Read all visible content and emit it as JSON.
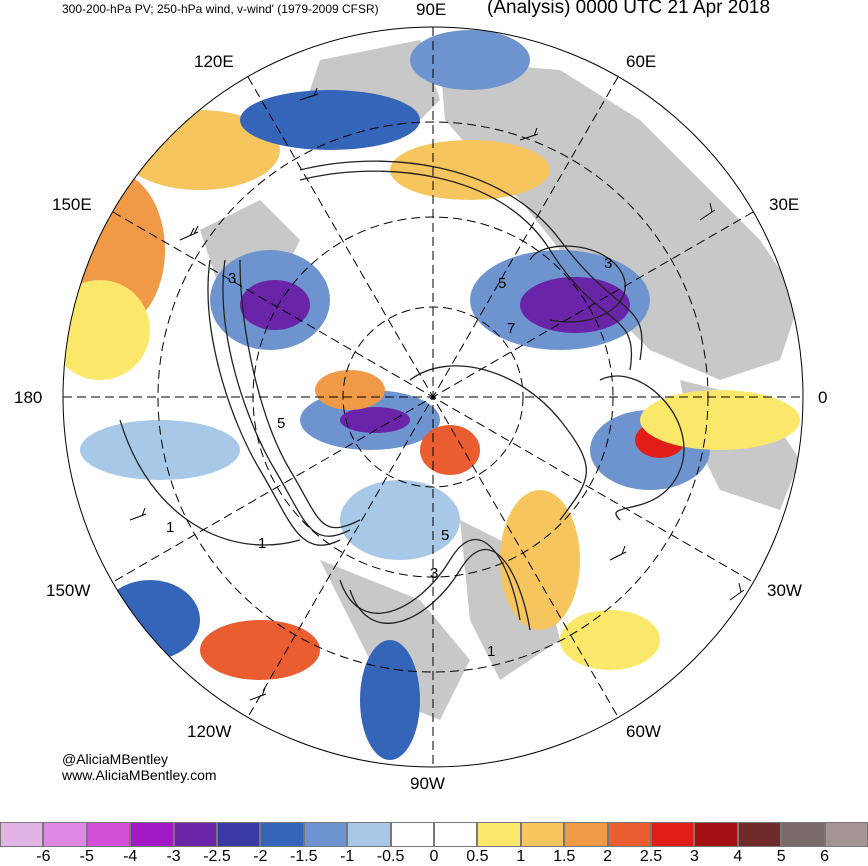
{
  "header": {
    "left_title": "300-200-hPa PV; 250-hPa wind, v-wind' (1979-2009 CFSR)",
    "right_title": "(Analysis) 0000 UTC 21 Apr 2018"
  },
  "longitude_labels": {
    "lon_90e": "90E",
    "lon_120e": "120E",
    "lon_60e": "60E",
    "lon_150e": "150E",
    "lon_30e": "30E",
    "lon_180": "180",
    "lon_0": "0",
    "lon_150w": "150W",
    "lon_30w": "30W",
    "lon_120w": "120W",
    "lon_60w": "60W",
    "lon_90w": "90W"
  },
  "credits": {
    "handle": "@AliciaMBentley",
    "website": "www.AliciaMBentley.com"
  },
  "contour_labels": [
    "3",
    "3",
    "7",
    "5",
    "5",
    "1",
    "1",
    "5",
    "3",
    "1"
  ],
  "colorbar": {
    "colors": [
      "#e2b4e6",
      "#de88e4",
      "#d34fd8",
      "#a319c6",
      "#6a24a8",
      "#3a3aa2",
      "#3465b8",
      "#6e94cf",
      "#a7c8e6",
      "#ffffff",
      "#ffffff",
      "#fbe86a",
      "#f6c55d",
      "#f09a48",
      "#ea5d31",
      "#e11d19",
      "#a30f13",
      "#6f2a2a",
      "#7a6b6b",
      "#a39593"
    ],
    "ticks": [
      "-6",
      "-5",
      "-4",
      "-3",
      "-2.5",
      "-2",
      "-1.5",
      "-1",
      "-0.5",
      "0",
      "0.5",
      "1",
      "1.5",
      "2",
      "2.5",
      "3",
      "4",
      "5",
      "6"
    ]
  }
}
